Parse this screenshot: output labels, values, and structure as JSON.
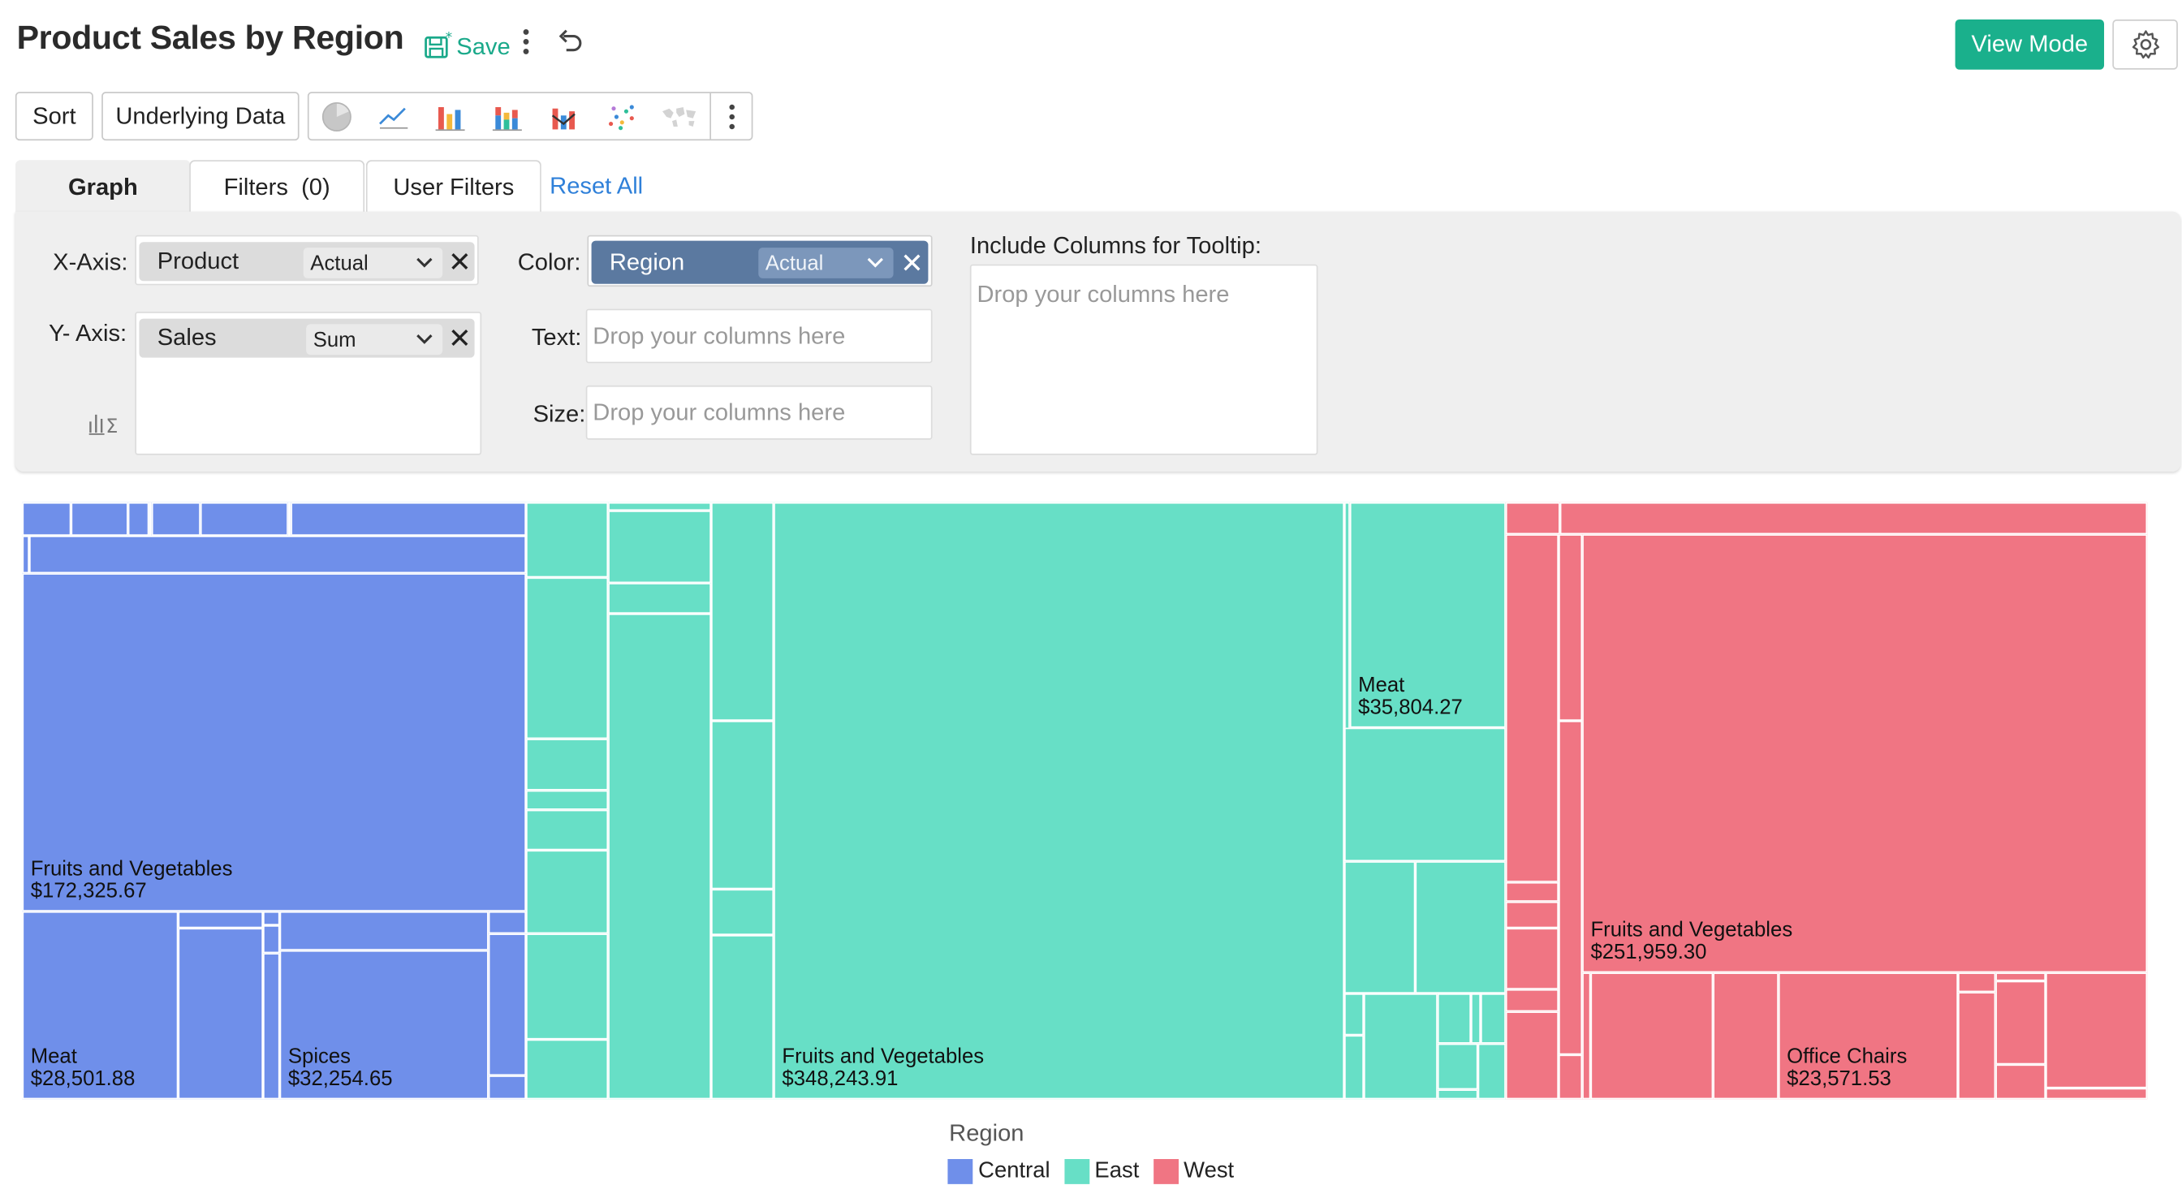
{
  "header": {
    "title": "Product Sales by Region",
    "save_label": "Save",
    "view_mode_label": "View Mode"
  },
  "toolbar": {
    "sort_label": "Sort",
    "underlying_label": "Underlying Data",
    "chart_type_icons": [
      "pie-chart-icon",
      "line-chart-icon",
      "bar-chart-icon",
      "stacked-bar-chart-icon",
      "combo-chart-icon",
      "scatter-chart-icon",
      "map-chart-icon"
    ]
  },
  "tabs": {
    "graph": "Graph",
    "filters": "Filters  (0)",
    "user_filters": "User Filters",
    "reset_all": "Reset All"
  },
  "panel": {
    "x_axis_label": "X-Axis:",
    "x_axis_column": "Product",
    "x_axis_agg": "Actual",
    "y_axis_label": "Y- Axis:",
    "y_axis_column": "Sales",
    "y_axis_agg": "Sum",
    "color_label": "Color:",
    "color_column": "Region",
    "color_agg": "Actual",
    "text_label": "Text:",
    "size_label": "Size:",
    "drop_placeholder": "Drop your columns here",
    "tooltip_label": "Include Columns for Tooltip:"
  },
  "colors": {
    "Central": "#6f8fea",
    "East": "#67dfc6",
    "West": "#f07583"
  },
  "chart_data": {
    "type": "treemap",
    "legend_title": "Region",
    "legend": [
      "Central",
      "East",
      "West"
    ],
    "labeled_tiles": [
      {
        "region": "Central",
        "product": "Fruits and Vegetables",
        "value": "$172,325.67"
      },
      {
        "region": "Central",
        "product": "Meat",
        "value": "$28,501.88"
      },
      {
        "region": "Central",
        "product": "Spices",
        "value": "$32,254.65"
      },
      {
        "region": "East",
        "product": "Fruits and Vegetables",
        "value": "$348,243.91"
      },
      {
        "region": "East",
        "product": "Meat",
        "value": "$35,804.27"
      },
      {
        "region": "West",
        "product": "Fruits and Vegetables",
        "value": "$251,959.30"
      },
      {
        "region": "West",
        "product": "Office Chairs",
        "value": "$23,571.53"
      }
    ]
  }
}
